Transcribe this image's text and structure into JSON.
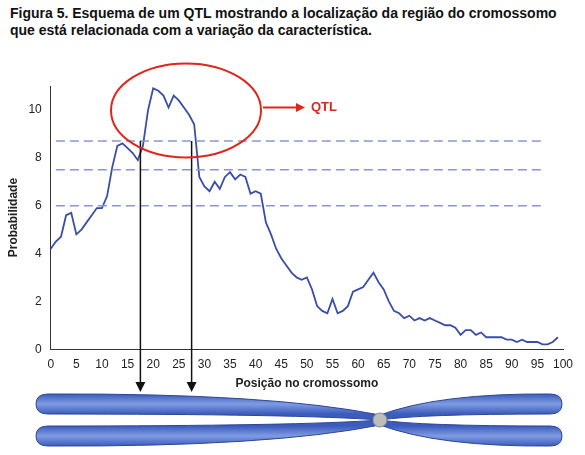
{
  "chart_data": {
    "type": "line",
    "title": "Figura 5. Esquema de um QTL mostrando a localização da região do cromossomo que está relacionada com a variação da característica.",
    "x_label": "Posição no cromossomo",
    "y_label": "Probabilidade",
    "x": [
      0,
      1,
      2,
      3,
      4,
      5,
      6,
      7,
      8,
      9,
      10,
      11,
      12,
      13,
      14,
      15,
      16,
      17,
      18,
      19,
      20,
      21,
      22,
      23,
      24,
      25,
      26,
      27,
      28,
      29,
      30,
      31,
      32,
      33,
      34,
      35,
      36,
      37,
      38,
      39,
      40,
      41,
      42,
      43,
      44,
      45,
      46,
      47,
      48,
      49,
      50,
      51,
      52,
      53,
      54,
      55,
      56,
      57,
      58,
      59,
      60,
      61,
      62,
      63,
      64,
      65,
      66,
      67,
      68,
      69,
      70,
      71,
      72,
      73,
      74,
      75,
      76,
      77,
      78,
      79,
      80,
      81,
      82,
      83,
      84,
      85,
      86,
      87,
      88,
      89,
      90,
      91,
      92,
      93,
      94,
      95,
      96,
      97,
      98,
      99
    ],
    "values": [
      4.2,
      4.5,
      4.7,
      5.6,
      5.7,
      4.8,
      5.0,
      5.3,
      5.6,
      5.9,
      5.9,
      6.4,
      7.6,
      8.5,
      8.6,
      8.4,
      8.2,
      7.9,
      8.5,
      10.0,
      10.9,
      10.8,
      10.6,
      10.1,
      10.6,
      10.4,
      10.1,
      9.8,
      9.4,
      7.2,
      6.8,
      6.6,
      7.0,
      6.7,
      7.2,
      7.4,
      7.1,
      7.3,
      7.2,
      6.5,
      6.6,
      6.5,
      5.3,
      4.8,
      4.2,
      3.8,
      3.5,
      3.2,
      3.0,
      2.9,
      3.0,
      2.5,
      1.8,
      1.6,
      1.5,
      2.1,
      1.5,
      1.6,
      1.8,
      2.4,
      2.5,
      2.6,
      2.9,
      3.2,
      2.8,
      2.5,
      2.0,
      1.6,
      1.5,
      1.3,
      1.4,
      1.2,
      1.3,
      1.2,
      1.3,
      1.2,
      1.1,
      1.0,
      1.0,
      0.9,
      0.6,
      0.8,
      0.8,
      0.6,
      0.7,
      0.5,
      0.5,
      0.5,
      0.5,
      0.4,
      0.4,
      0.3,
      0.4,
      0.3,
      0.3,
      0.3,
      0.2,
      0.2,
      0.3,
      0.5
    ],
    "color": "#3a4ea8",
    "xlim": [
      0,
      100
    ],
    "xticks": [
      0,
      5,
      10,
      15,
      20,
      25,
      30,
      35,
      40,
      45,
      50,
      55,
      60,
      65,
      70,
      75,
      80,
      85,
      90,
      95,
      100
    ],
    "ylim": [
      0,
      11
    ],
    "yticks": [
      0,
      2,
      4,
      6,
      8,
      10
    ],
    "grid": false,
    "threshold_lines": [
      8.7,
      7.5,
      6.0
    ],
    "threshold_extent": [
      1,
      96
    ],
    "annotations": [
      {
        "text": "QTL",
        "region": [
          17.5,
          27.5
        ]
      }
    ]
  }
}
